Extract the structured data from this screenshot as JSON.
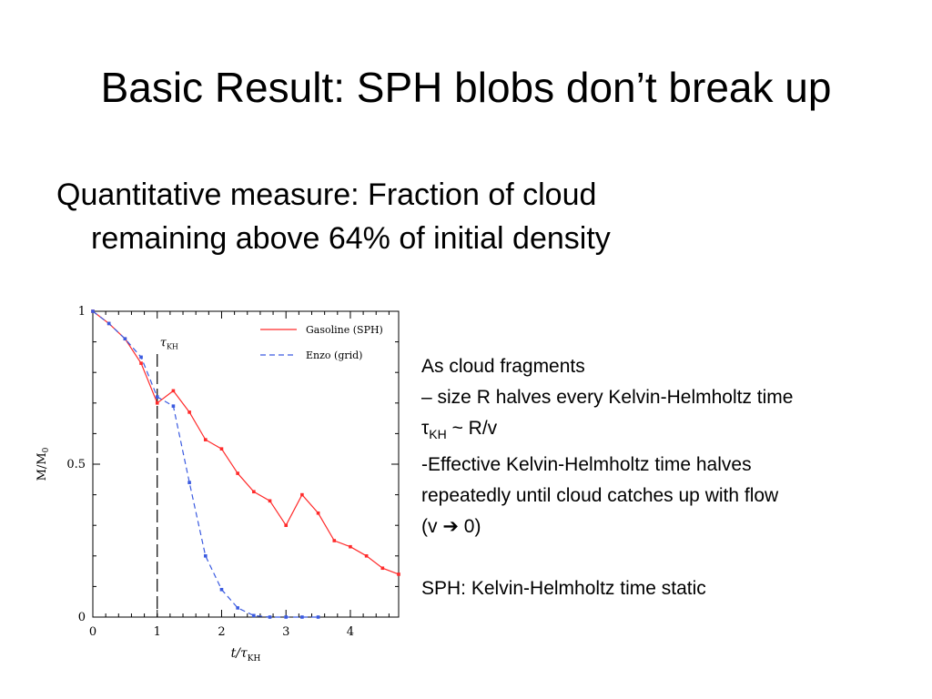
{
  "slide": {
    "title": "Basic Result: SPH blobs don’t break up",
    "bullet_line1": "Quantitative measure:  Fraction of cloud",
    "bullet_line2": "remaining above 64% of initial density"
  },
  "side_text": {
    "line1": "As cloud fragments",
    "line2": "– size R halves every Kelvin-Helmholtz time",
    "tau_symbol": "τ",
    "tau_sub": "KH",
    "tau_rest": " ~ R/v",
    "line4": "-Effective Kelvin-Helmholtz time halves",
    "line5": "repeatedly until cloud catches up with flow",
    "line6_open": "(v ",
    "arrow": "➔",
    "line6_close": " 0)",
    "line7": "SPH: Kelvin-Helmholtz time static"
  },
  "chart_data": {
    "type": "line",
    "xlabel_main": "t/τ",
    "xlabel_sub": "KH",
    "ylabel_main": "M/M",
    "ylabel_sub": "0",
    "xlim": [
      0,
      4.75
    ],
    "ylim": [
      0,
      1
    ],
    "x_ticks": [
      "0",
      "1",
      "2",
      "3",
      "4"
    ],
    "y_ticks": [
      "0",
      "0.5",
      "1"
    ],
    "annotation": {
      "text": "τ",
      "sub": "KH",
      "x": 1
    },
    "legend": "top-right",
    "series": [
      {
        "name": "Gasoline (SPH)",
        "color": "#ff2a2a",
        "style": "solid",
        "x": [
          0,
          0.25,
          0.5,
          0.75,
          1.0,
          1.25,
          1.5,
          1.75,
          2.0,
          2.25,
          2.5,
          2.75,
          3.0,
          3.25,
          3.5,
          3.75,
          4.0,
          4.25,
          4.5,
          4.75
        ],
        "values": [
          1.0,
          0.96,
          0.91,
          0.83,
          0.7,
          0.74,
          0.67,
          0.58,
          0.55,
          0.47,
          0.41,
          0.38,
          0.3,
          0.4,
          0.34,
          0.25,
          0.23,
          0.2,
          0.16,
          0.14
        ]
      },
      {
        "name": "Enzo (grid)",
        "color": "#3a5ae0",
        "style": "dashed",
        "x": [
          0,
          0.25,
          0.5,
          0.75,
          1.0,
          1.25,
          1.5,
          1.75,
          2.0,
          2.25,
          2.5,
          2.75,
          3.0,
          3.25,
          3.5
        ],
        "values": [
          1.0,
          0.96,
          0.91,
          0.85,
          0.72,
          0.69,
          0.44,
          0.2,
          0.09,
          0.03,
          0.005,
          0.0,
          0.0,
          0.0,
          0.0
        ]
      }
    ]
  }
}
